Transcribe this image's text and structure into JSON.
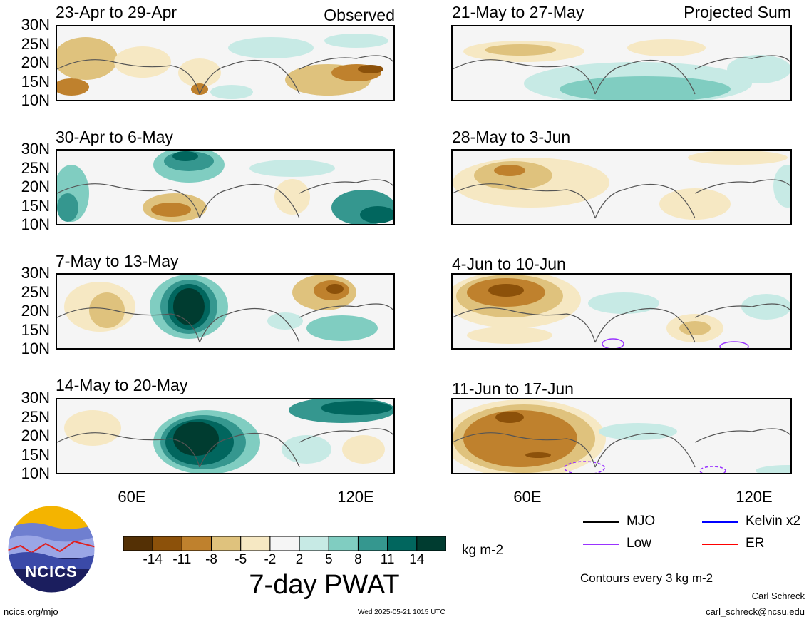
{
  "left_header": "Observed",
  "right_header": "Projected Sum",
  "panels_left": [
    {
      "title": "23-Apr to 29-Apr"
    },
    {
      "title": "30-Apr to 6-May"
    },
    {
      "title": "7-May to 13-May"
    },
    {
      "title": "14-May to 20-May"
    }
  ],
  "panels_right": [
    {
      "title": "21-May to 27-May"
    },
    {
      "title": "28-May to 3-Jun"
    },
    {
      "title": "4-Jun to 10-Jun"
    },
    {
      "title": "11-Jun to 17-Jun"
    }
  ],
  "lat_labels": [
    "30N",
    "25N",
    "20N",
    "15N",
    "10N"
  ],
  "lon_labels": [
    "60E",
    "120E"
  ],
  "colorbar": {
    "title": "7-day PWAT",
    "units": "kg m-2",
    "ticks": [
      "-14",
      "-11",
      "-8",
      "-5",
      "-2",
      "2",
      "5",
      "8",
      "11",
      "14"
    ],
    "colors": [
      "#543005",
      "#8c510a",
      "#bf812d",
      "#dfc27d",
      "#f6e8c3",
      "#f5f5f5",
      "#c7eae5",
      "#80cdc1",
      "#35978f",
      "#01665e",
      "#003c30"
    ]
  },
  "legend": {
    "items": [
      {
        "label": "MJO",
        "color": "#000000",
        "style": "solid"
      },
      {
        "label": "Kelvin x2",
        "color": "#0000ff",
        "style": "solid"
      },
      {
        "label": "Low",
        "color": "#9933ff",
        "style": "solid"
      },
      {
        "label": "ER",
        "color": "#ff0000",
        "style": "solid"
      }
    ],
    "note": "Contours every 3 kg m-2"
  },
  "footer": {
    "logo_text": "NCICS",
    "url": "ncics.org/mjo",
    "timestamp": "Wed 2025-05-21 1015 UTC",
    "author": "Carl Schreck",
    "email": "carl_schreck@ncsu.edu"
  }
}
